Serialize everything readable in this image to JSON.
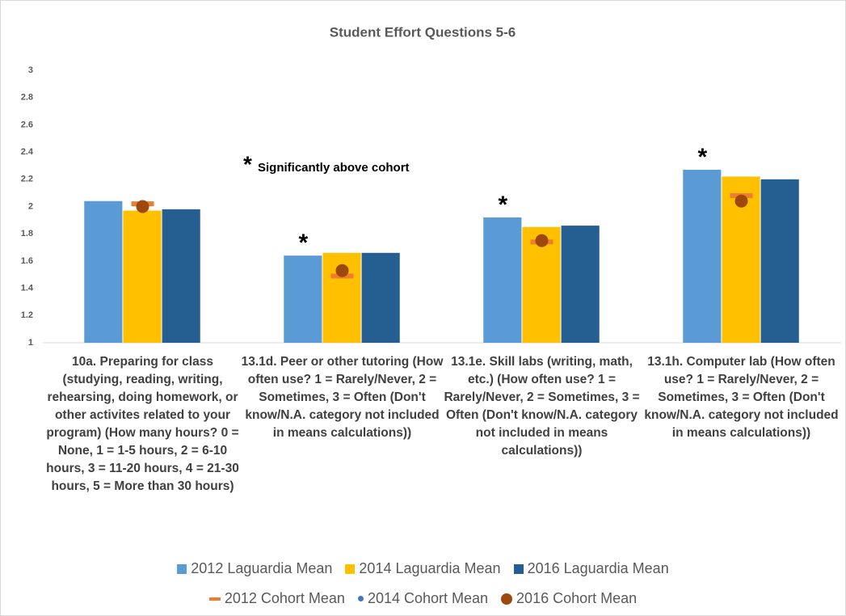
{
  "chart_data": {
    "type": "bar",
    "title": "Student Effort Questions 5-6",
    "categories": [
      "10a. Preparing for class (studying, reading, writing, rehearsing, doing homework, or other activites related to your program) (How many hours? 0 = None, 1 = 1-5 hours, 2 = 6-10 hours, 3 = 11-20 hours, 4 = 21-30 hours, 5 = More than 30 hours)",
      "13.1d. Peer or other tutoring (How often use? 1 = Rarely/Never, 2 = Sometimes, 3 = Often (Don't know/N.A. category not included in means calculations))",
      "13.1e. Skill labs (writing, math, etc.) (How often use? 1 = Rarely/Never, 2 = Sometimes, 3 = Often (Don't know/N.A. category not included in means calculations))",
      "13.1h. Computer lab (How often use? 1 = Rarely/Never, 2 = Sometimes, 3 = Often (Don't know/N.A. category not included in means calculations))"
    ],
    "series": [
      {
        "name": "2012 Laguardia Mean",
        "color": "#5b9bd5",
        "values": [
          2.04,
          1.64,
          1.92,
          2.27
        ]
      },
      {
        "name": "2014 Laguardia Mean",
        "color": "#ffc000",
        "values": [
          1.97,
          1.66,
          1.85,
          2.22
        ]
      },
      {
        "name": "2016 Laguardia Mean",
        "color": "#255e91",
        "values": [
          1.98,
          1.66,
          1.86,
          2.2
        ]
      }
    ],
    "cohort_series": [
      {
        "name": "2012 Cohort Mean",
        "color": "#ed7d31",
        "marker": "dash",
        "values": [
          2.02,
          1.49,
          1.74,
          2.08
        ]
      },
      {
        "name": "2014 Cohort Mean",
        "color": "#4472c4",
        "marker": "circle",
        "values": [
          null,
          null,
          null,
          null
        ]
      },
      {
        "name": "2016 Cohort Mean",
        "color": "#9e480e",
        "marker": "circle",
        "values": [
          2.0,
          1.53,
          1.75,
          2.04
        ]
      }
    ],
    "significance_marker": "*",
    "significance_note": "Significantly above cohort",
    "significant": [
      false,
      true,
      true,
      true
    ],
    "ylim": [
      1,
      3
    ],
    "yticks": [
      1,
      1.2,
      1.4,
      1.6,
      1.8,
      2,
      2.2,
      2.4,
      2.6,
      2.8,
      3
    ],
    "grid": false
  }
}
